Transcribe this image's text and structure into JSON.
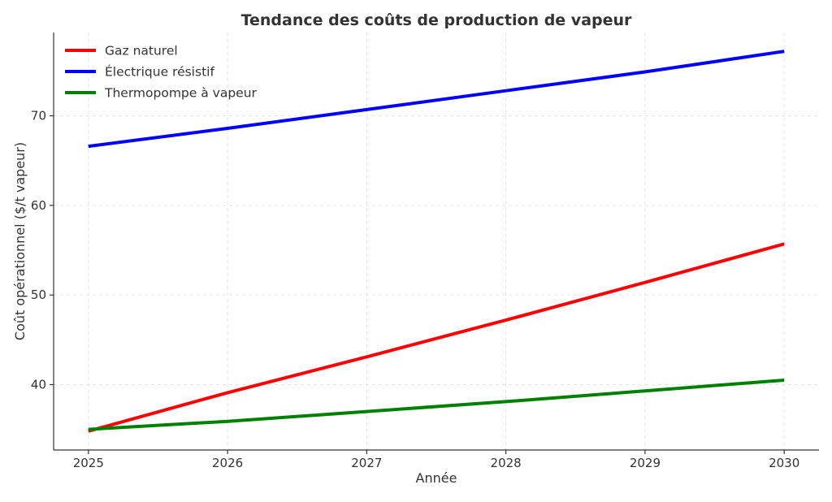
{
  "chart_data": {
    "type": "line",
    "title": "Tendance des coûts de production de vapeur",
    "xlabel": "Année",
    "ylabel": "Coût opérationnel ($/t vapeur)",
    "x": [
      2025,
      2026,
      2027,
      2028,
      2029,
      2030
    ],
    "xticks": [
      "2025",
      "2026",
      "2027",
      "2028",
      "2029",
      "2030"
    ],
    "yticks": [
      "40",
      "50",
      "60",
      "70"
    ],
    "xlim": [
      2024.75,
      2030.25
    ],
    "ylim": [
      32.7,
      79.3
    ],
    "grid": true,
    "legend_position": "top-left",
    "series": [
      {
        "name": "Gaz naturel",
        "color": "#ff0000",
        "values": [
          34.8,
          39.1,
          43.1,
          47.2,
          51.4,
          55.7
        ]
      },
      {
        "name": "Électrique résistif",
        "color": "#0000ff",
        "values": [
          66.6,
          68.6,
          70.7,
          72.8,
          74.9,
          77.2
        ]
      },
      {
        "name": "Thermopompe à vapeur",
        "color": "#008000",
        "values": [
          35.0,
          35.9,
          37.0,
          38.1,
          39.3,
          40.5
        ]
      }
    ]
  }
}
